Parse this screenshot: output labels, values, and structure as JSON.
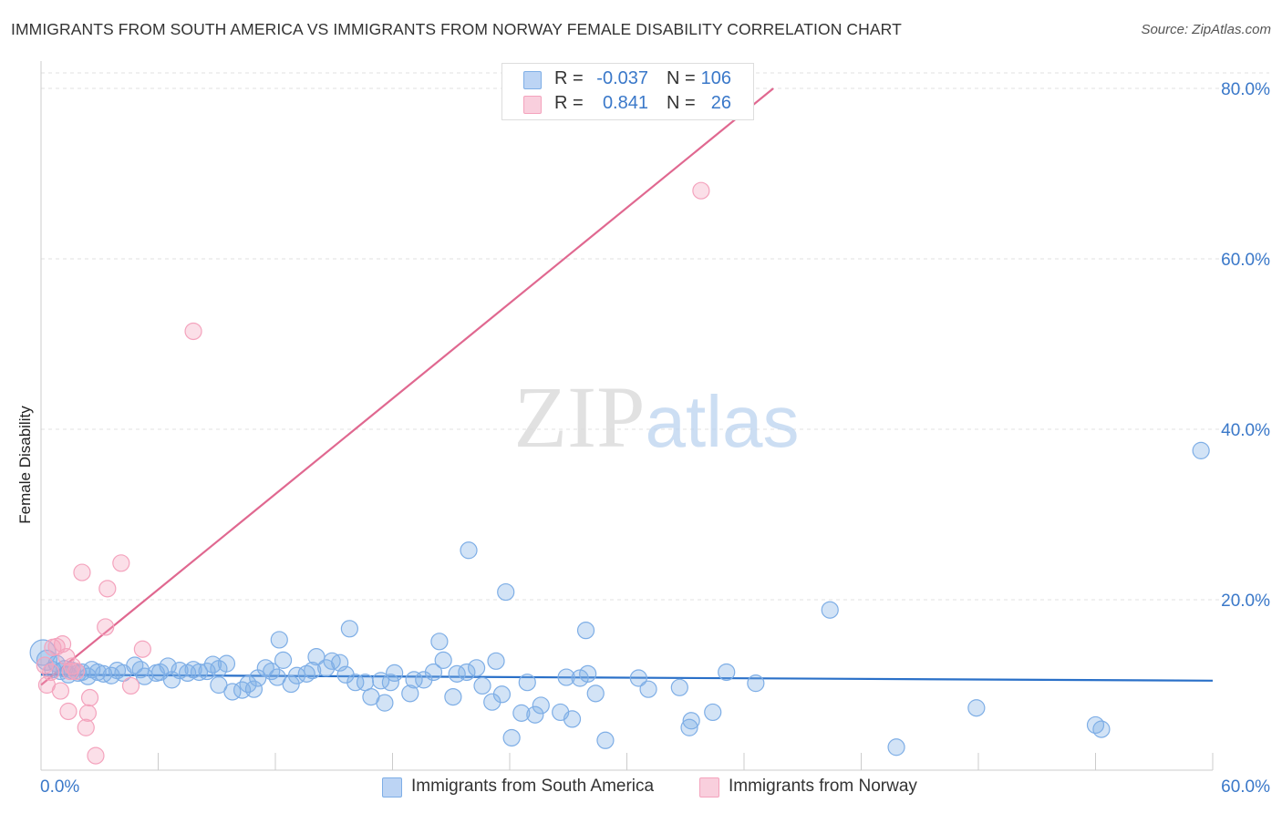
{
  "chart_data": {
    "type": "scatter",
    "title": "IMMIGRANTS FROM SOUTH AMERICA VS IMMIGRANTS FROM NORWAY FEMALE DISABILITY CORRELATION CHART",
    "source": "Source: ZipAtlas.com",
    "xlabel": "",
    "ylabel": "Female Disability",
    "xlim": [
      0,
      60
    ],
    "ylim": [
      0,
      80
    ],
    "x_tick_labels": [
      "0.0%",
      "60.0%"
    ],
    "y_ticks": [
      20,
      40,
      60,
      80
    ],
    "y_tick_labels": [
      "20.0%",
      "40.0%",
      "60.0%",
      "80.0%"
    ],
    "grid": true,
    "watermark": "ZIPatlas",
    "legend": {
      "placement": "top-center",
      "entries": [
        {
          "r_label": "R =",
          "r_value": "-0.037",
          "n_label": "N =",
          "n_value": "106"
        },
        {
          "r_label": "R =",
          "r_value": "0.841",
          "n_label": "N =",
          "n_value": "26"
        }
      ]
    },
    "series": [
      {
        "name": "Immigrants from South America",
        "color": "#7eaee6",
        "line_color": "#2a70c8",
        "trend": {
          "x": [
            0,
            60
          ],
          "y": [
            11.2,
            10.5
          ]
        },
        "points": [
          {
            "x": 0.1,
            "y": 13.8,
            "s": 14
          },
          {
            "x": 0.3,
            "y": 12.9,
            "s": 11
          },
          {
            "x": 0.6,
            "y": 11.8,
            "s": 9
          },
          {
            "x": 0.8,
            "y": 12.5,
            "s": 9
          },
          {
            "x": 1.0,
            "y": 11.6,
            "s": 9
          },
          {
            "x": 1.2,
            "y": 11.9,
            "s": 9
          },
          {
            "x": 1.4,
            "y": 11.2,
            "s": 9
          },
          {
            "x": 1.6,
            "y": 11.7,
            "s": 9
          },
          {
            "x": 1.9,
            "y": 11.4,
            "s": 9
          },
          {
            "x": 2.1,
            "y": 11.5,
            "s": 9
          },
          {
            "x": 2.4,
            "y": 11.0,
            "s": 9
          },
          {
            "x": 2.6,
            "y": 11.8,
            "s": 9
          },
          {
            "x": 2.9,
            "y": 11.5,
            "s": 9
          },
          {
            "x": 3.2,
            "y": 11.3,
            "s": 9
          },
          {
            "x": 3.6,
            "y": 11.1,
            "s": 9
          },
          {
            "x": 3.9,
            "y": 11.7,
            "s": 9
          },
          {
            "x": 4.2,
            "y": 11.4,
            "s": 9
          },
          {
            "x": 4.8,
            "y": 12.3,
            "s": 9
          },
          {
            "x": 5.1,
            "y": 11.8,
            "s": 9
          },
          {
            "x": 5.3,
            "y": 11.0,
            "s": 9
          },
          {
            "x": 5.9,
            "y": 11.4,
            "s": 9
          },
          {
            "x": 6.1,
            "y": 11.5,
            "s": 9
          },
          {
            "x": 6.5,
            "y": 12.2,
            "s": 9
          },
          {
            "x": 6.7,
            "y": 10.6,
            "s": 9
          },
          {
            "x": 7.1,
            "y": 11.7,
            "s": 9
          },
          {
            "x": 7.5,
            "y": 11.4,
            "s": 9
          },
          {
            "x": 7.8,
            "y": 11.8,
            "s": 9
          },
          {
            "x": 8.1,
            "y": 11.5,
            "s": 9
          },
          {
            "x": 8.5,
            "y": 11.6,
            "s": 9
          },
          {
            "x": 8.8,
            "y": 12.4,
            "s": 9
          },
          {
            "x": 9.1,
            "y": 11.9,
            "s": 9
          },
          {
            "x": 9.1,
            "y": 10.0,
            "s": 9
          },
          {
            "x": 9.5,
            "y": 12.5,
            "s": 9
          },
          {
            "x": 9.8,
            "y": 9.2,
            "s": 9
          },
          {
            "x": 10.3,
            "y": 9.4,
            "s": 9
          },
          {
            "x": 10.6,
            "y": 10.1,
            "s": 9
          },
          {
            "x": 10.9,
            "y": 9.5,
            "s": 9
          },
          {
            "x": 11.1,
            "y": 10.8,
            "s": 9
          },
          {
            "x": 11.5,
            "y": 12.0,
            "s": 9
          },
          {
            "x": 11.8,
            "y": 11.6,
            "s": 9
          },
          {
            "x": 12.1,
            "y": 10.9,
            "s": 9
          },
          {
            "x": 12.2,
            "y": 15.3,
            "s": 9
          },
          {
            "x": 12.4,
            "y": 12.9,
            "s": 9
          },
          {
            "x": 12.8,
            "y": 10.1,
            "s": 9
          },
          {
            "x": 13.1,
            "y": 11.1,
            "s": 9
          },
          {
            "x": 13.6,
            "y": 11.3,
            "s": 9
          },
          {
            "x": 13.9,
            "y": 11.7,
            "s": 9
          },
          {
            "x": 14.1,
            "y": 13.3,
            "s": 9
          },
          {
            "x": 14.6,
            "y": 12.0,
            "s": 9
          },
          {
            "x": 14.9,
            "y": 12.8,
            "s": 9
          },
          {
            "x": 15.3,
            "y": 12.6,
            "s": 9
          },
          {
            "x": 15.6,
            "y": 11.2,
            "s": 9
          },
          {
            "x": 15.8,
            "y": 16.6,
            "s": 9
          },
          {
            "x": 16.1,
            "y": 10.3,
            "s": 9
          },
          {
            "x": 16.6,
            "y": 10.3,
            "s": 9
          },
          {
            "x": 16.9,
            "y": 8.6,
            "s": 9
          },
          {
            "x": 17.4,
            "y": 10.5,
            "s": 9
          },
          {
            "x": 17.6,
            "y": 7.9,
            "s": 9
          },
          {
            "x": 17.9,
            "y": 10.3,
            "s": 9
          },
          {
            "x": 18.1,
            "y": 11.4,
            "s": 9
          },
          {
            "x": 18.9,
            "y": 9.0,
            "s": 9
          },
          {
            "x": 19.1,
            "y": 10.6,
            "s": 9
          },
          {
            "x": 19.6,
            "y": 10.6,
            "s": 9
          },
          {
            "x": 20.1,
            "y": 11.5,
            "s": 9
          },
          {
            "x": 20.4,
            "y": 15.1,
            "s": 9
          },
          {
            "x": 20.6,
            "y": 12.9,
            "s": 9
          },
          {
            "x": 21.1,
            "y": 8.6,
            "s": 9
          },
          {
            "x": 21.3,
            "y": 11.3,
            "s": 9
          },
          {
            "x": 21.8,
            "y": 11.5,
            "s": 9
          },
          {
            "x": 21.9,
            "y": 25.8,
            "s": 9
          },
          {
            "x": 22.3,
            "y": 12.0,
            "s": 9
          },
          {
            "x": 22.6,
            "y": 9.9,
            "s": 9
          },
          {
            "x": 23.1,
            "y": 8.0,
            "s": 9
          },
          {
            "x": 23.3,
            "y": 12.8,
            "s": 9
          },
          {
            "x": 23.6,
            "y": 8.9,
            "s": 9
          },
          {
            "x": 23.8,
            "y": 20.9,
            "s": 9
          },
          {
            "x": 24.1,
            "y": 3.8,
            "s": 9
          },
          {
            "x": 24.6,
            "y": 6.7,
            "s": 9
          },
          {
            "x": 24.9,
            "y": 10.3,
            "s": 9
          },
          {
            "x": 25.3,
            "y": 6.5,
            "s": 9
          },
          {
            "x": 25.6,
            "y": 7.6,
            "s": 9
          },
          {
            "x": 26.6,
            "y": 6.8,
            "s": 9
          },
          {
            "x": 26.9,
            "y": 10.9,
            "s": 9
          },
          {
            "x": 27.6,
            "y": 10.8,
            "s": 9
          },
          {
            "x": 27.2,
            "y": 6.0,
            "s": 9
          },
          {
            "x": 27.9,
            "y": 16.4,
            "s": 9
          },
          {
            "x": 28.0,
            "y": 11.3,
            "s": 9
          },
          {
            "x": 28.4,
            "y": 9.0,
            "s": 9
          },
          {
            "x": 28.9,
            "y": 3.5,
            "s": 9
          },
          {
            "x": 30.6,
            "y": 10.8,
            "s": 9
          },
          {
            "x": 31.1,
            "y": 9.5,
            "s": 9
          },
          {
            "x": 32.7,
            "y": 9.7,
            "s": 9
          },
          {
            "x": 33.2,
            "y": 5.0,
            "s": 9
          },
          {
            "x": 33.3,
            "y": 5.8,
            "s": 9
          },
          {
            "x": 34.4,
            "y": 6.8,
            "s": 9
          },
          {
            "x": 35.1,
            "y": 11.5,
            "s": 9
          },
          {
            "x": 36.6,
            "y": 10.2,
            "s": 9
          },
          {
            "x": 40.4,
            "y": 18.8,
            "s": 9
          },
          {
            "x": 43.8,
            "y": 2.7,
            "s": 9
          },
          {
            "x": 47.9,
            "y": 7.3,
            "s": 9
          },
          {
            "x": 54.0,
            "y": 5.3,
            "s": 9
          },
          {
            "x": 54.3,
            "y": 4.8,
            "s": 9
          },
          {
            "x": 59.4,
            "y": 37.5,
            "s": 9
          }
        ]
      },
      {
        "name": "Immigrants from Norway",
        "color": "#f4a3bd",
        "line_color": "#e06890",
        "trend": {
          "x": [
            0,
            37.5
          ],
          "y": [
            10.0,
            80
          ]
        },
        "points": [
          {
            "x": 0.2,
            "y": 12.3,
            "s": 9
          },
          {
            "x": 0.3,
            "y": 10.0,
            "s": 9
          },
          {
            "x": 0.5,
            "y": 11.5,
            "s": 9
          },
          {
            "x": 0.6,
            "y": 14.4,
            "s": 9
          },
          {
            "x": 0.8,
            "y": 14.5,
            "s": 9
          },
          {
            "x": 1.0,
            "y": 9.3,
            "s": 9
          },
          {
            "x": 1.1,
            "y": 14.8,
            "s": 9
          },
          {
            "x": 1.3,
            "y": 13.3,
            "s": 9
          },
          {
            "x": 1.4,
            "y": 6.9,
            "s": 9
          },
          {
            "x": 1.5,
            "y": 11.6,
            "s": 9
          },
          {
            "x": 1.6,
            "y": 12.2,
            "s": 9
          },
          {
            "x": 1.8,
            "y": 11.6,
            "s": 9
          },
          {
            "x": 2.1,
            "y": 23.2,
            "s": 9
          },
          {
            "x": 2.3,
            "y": 5.0,
            "s": 9
          },
          {
            "x": 2.4,
            "y": 6.7,
            "s": 9
          },
          {
            "x": 2.5,
            "y": 8.5,
            "s": 9
          },
          {
            "x": 2.8,
            "y": 1.7,
            "s": 9
          },
          {
            "x": 3.3,
            "y": 16.8,
            "s": 9
          },
          {
            "x": 3.4,
            "y": 21.3,
            "s": 9
          },
          {
            "x": 4.1,
            "y": 24.3,
            "s": 9
          },
          {
            "x": 4.6,
            "y": 9.9,
            "s": 9
          },
          {
            "x": 5.2,
            "y": 14.2,
            "s": 9
          },
          {
            "x": 7.8,
            "y": 51.5,
            "s": 9
          },
          {
            "x": 33.8,
            "y": 68.0,
            "s": 9
          }
        ]
      }
    ]
  },
  "bottom_legend": {
    "south_america": "Immigrants from South America",
    "norway": "Immigrants from Norway"
  }
}
